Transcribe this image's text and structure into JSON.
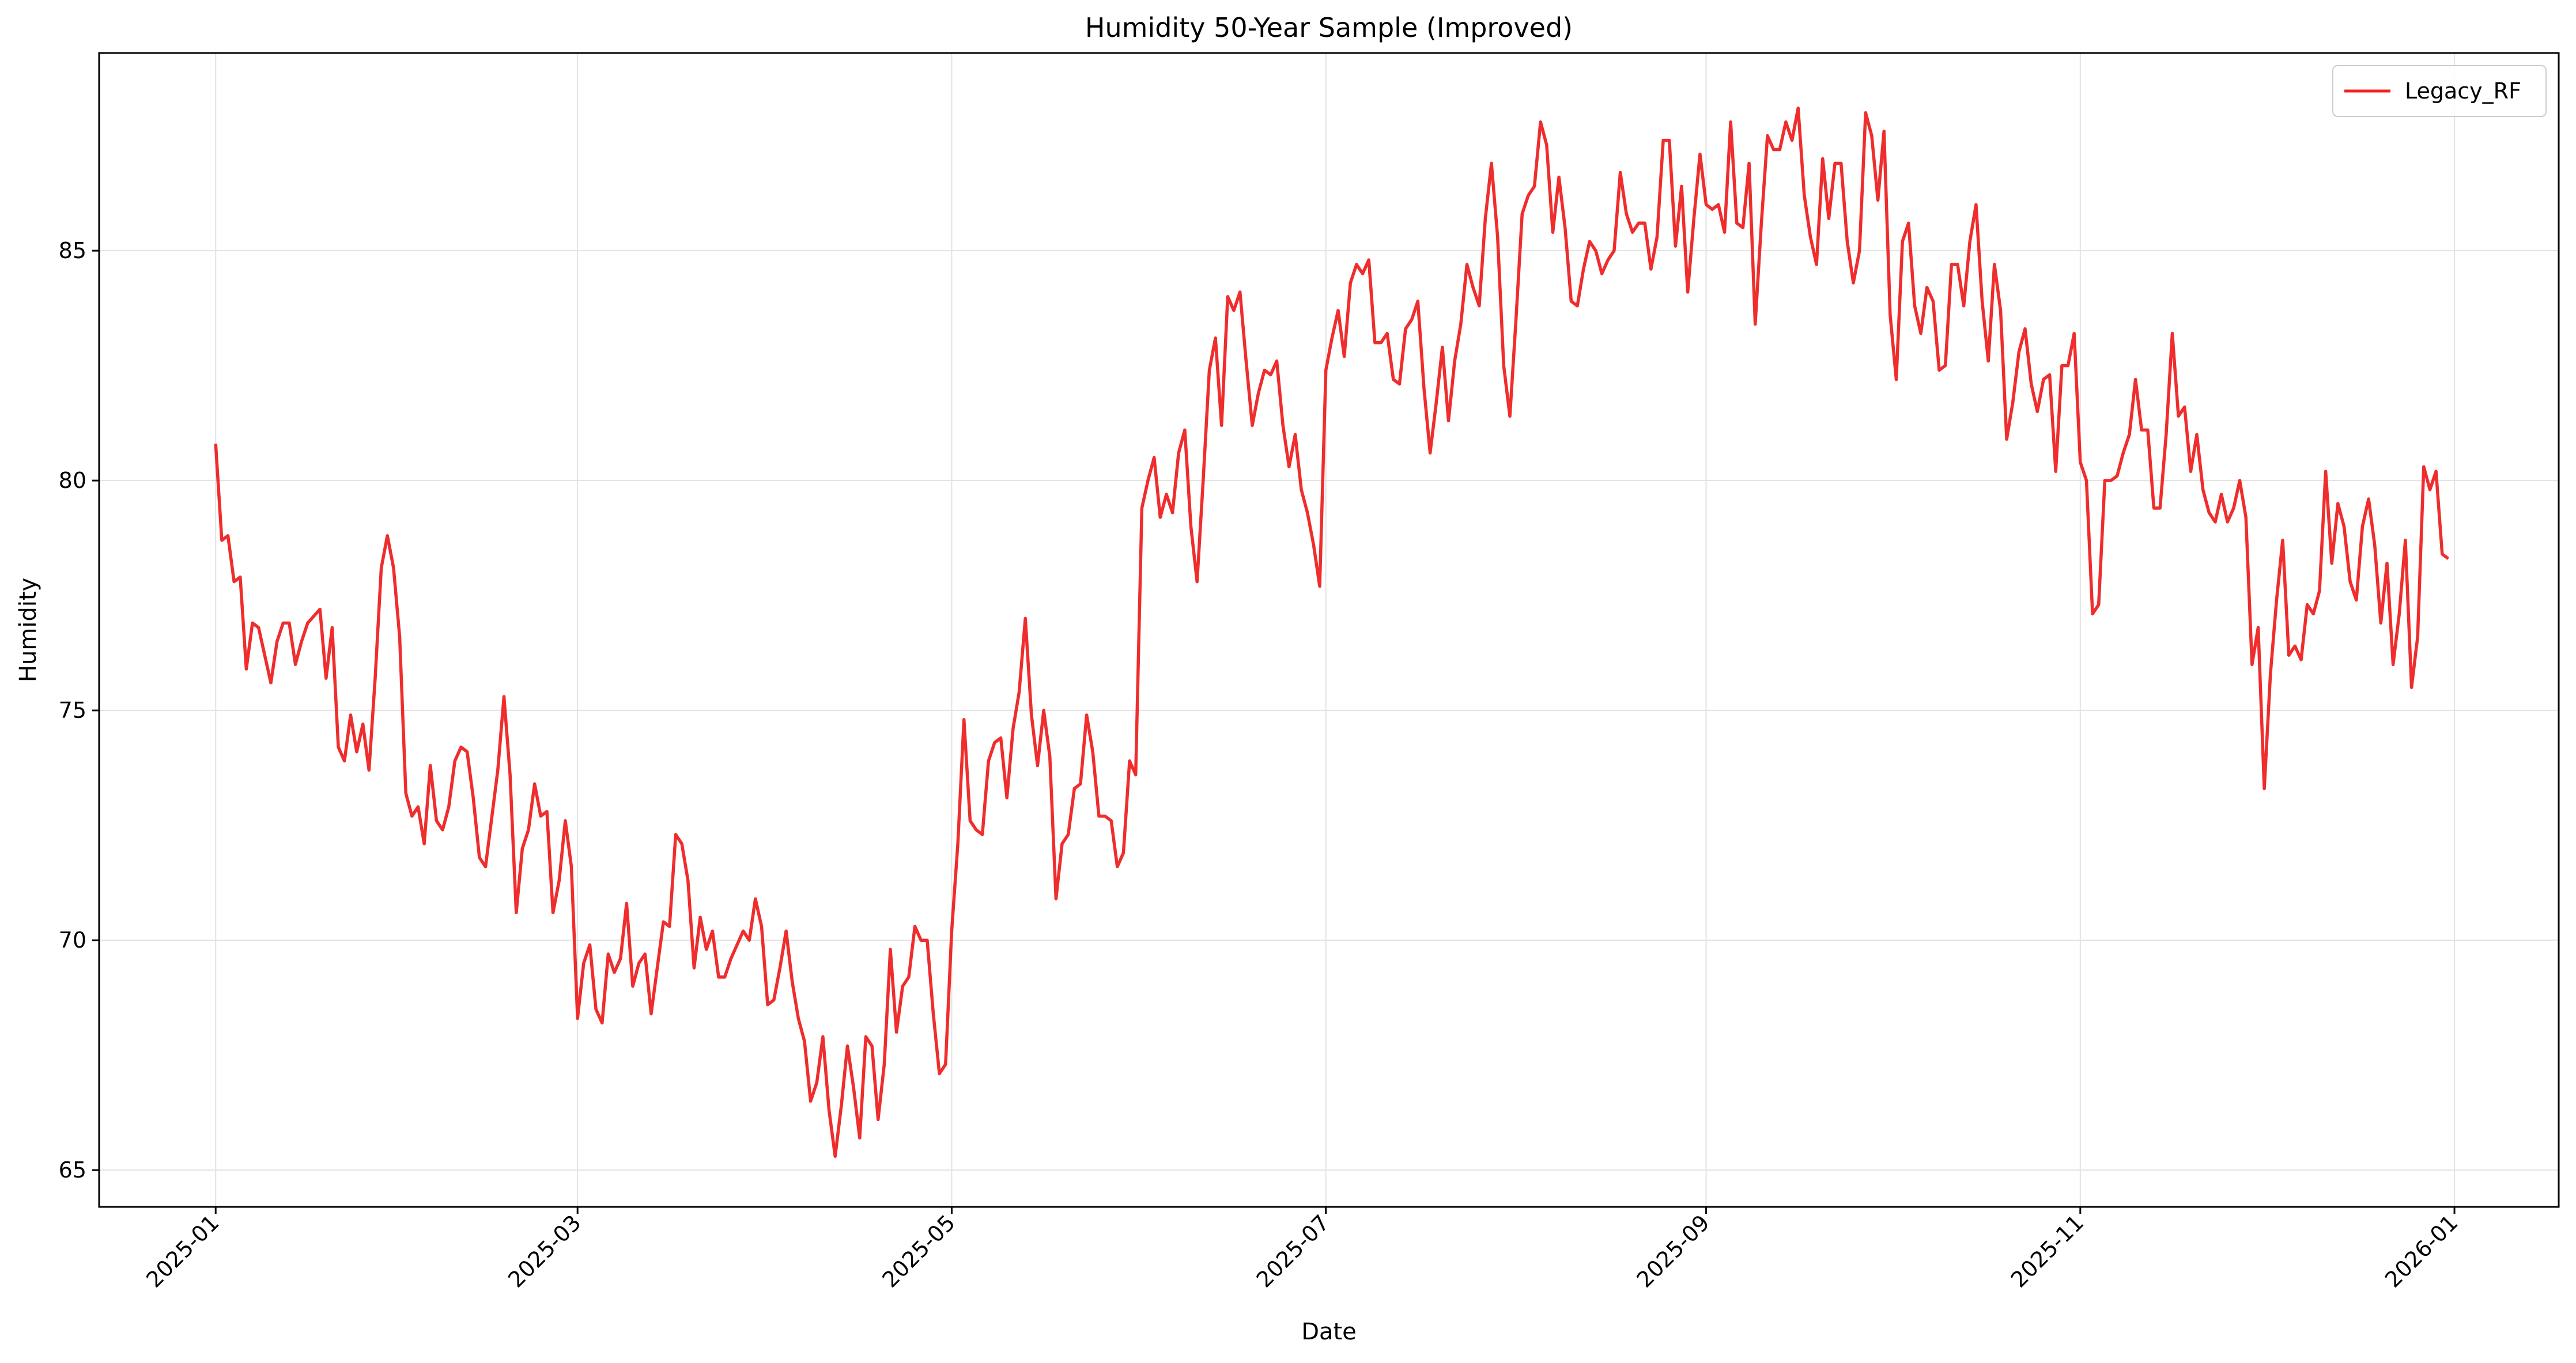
{
  "chart_data": {
    "type": "line",
    "title": "Humidity 50-Year Sample (Improved)",
    "xlabel": "Date",
    "ylabel": "Humidity",
    "x_range": [
      "2024-12-13",
      "2026-01-18"
    ],
    "ylim": [
      64.2,
      89.3
    ],
    "grid": true,
    "legend_placement": "top-right",
    "x_ticks": [
      "2025-01",
      "2025-03",
      "2025-05",
      "2025-07",
      "2025-09",
      "2025-11",
      "2026-01"
    ],
    "x_tick_dates": [
      "2025-01-01",
      "2025-03-01",
      "2025-05-01",
      "2025-07-01",
      "2025-09-01",
      "2025-11-01",
      "2026-01-01"
    ],
    "y_ticks": [
      65,
      70,
      75,
      80,
      85
    ],
    "series": [
      {
        "name": "Legacy_RF",
        "color": "#ee2222",
        "x": [
          "2025-01-01",
          "2025-01-02",
          "2025-01-03",
          "2025-01-04",
          "2025-01-05",
          "2025-01-06",
          "2025-01-07",
          "2025-01-08",
          "2025-01-10",
          "2025-01-11",
          "2025-01-12",
          "2025-01-13",
          "2025-01-14",
          "2025-01-15",
          "2025-01-16",
          "2025-01-18",
          "2025-01-19",
          "2025-01-20",
          "2025-01-21",
          "2025-01-22",
          "2025-01-23",
          "2025-01-24",
          "2025-01-25",
          "2025-01-26",
          "2025-01-27",
          "2025-01-28",
          "2025-01-29",
          "2025-01-30",
          "2025-01-31",
          "2025-02-01",
          "2025-02-02",
          "2025-02-03",
          "2025-02-04",
          "2025-02-05",
          "2025-02-06",
          "2025-02-07",
          "2025-02-08",
          "2025-02-09",
          "2025-02-10",
          "2025-02-11",
          "2025-02-12",
          "2025-02-13",
          "2025-02-14",
          "2025-02-16",
          "2025-02-17",
          "2025-02-18",
          "2025-02-19",
          "2025-02-20",
          "2025-02-21",
          "2025-02-22",
          "2025-02-23",
          "2025-02-24",
          "2025-02-25",
          "2025-02-26",
          "2025-02-27",
          "2025-02-28",
          "2025-03-01",
          "2025-03-02",
          "2025-03-03",
          "2025-03-04",
          "2025-03-05",
          "2025-03-06",
          "2025-03-07",
          "2025-03-08",
          "2025-03-09",
          "2025-03-10",
          "2025-03-11",
          "2025-03-12",
          "2025-03-13",
          "2025-03-14",
          "2025-03-15",
          "2025-03-16",
          "2025-03-17",
          "2025-03-18",
          "2025-03-19",
          "2025-03-20",
          "2025-03-21",
          "2025-03-22",
          "2025-03-23",
          "2025-03-24",
          "2025-03-25",
          "2025-03-26",
          "2025-03-28",
          "2025-03-29",
          "2025-03-30",
          "2025-03-31",
          "2025-04-01",
          "2025-04-02",
          "2025-04-03",
          "2025-04-04",
          "2025-04-05",
          "2025-04-06",
          "2025-04-07",
          "2025-04-08",
          "2025-04-09",
          "2025-04-10",
          "2025-04-11",
          "2025-04-12",
          "2025-04-13",
          "2025-04-14",
          "2025-04-15",
          "2025-04-16",
          "2025-04-17",
          "2025-04-18",
          "2025-04-19",
          "2025-04-20",
          "2025-04-21",
          "2025-04-22",
          "2025-04-23",
          "2025-04-24",
          "2025-04-25",
          "2025-04-26",
          "2025-04-27",
          "2025-04-28",
          "2025-04-29",
          "2025-04-30",
          "2025-05-01",
          "2025-05-02",
          "2025-05-03",
          "2025-05-04",
          "2025-05-05",
          "2025-05-06",
          "2025-05-07",
          "2025-05-08",
          "2025-05-09",
          "2025-05-10",
          "2025-05-11",
          "2025-05-12",
          "2025-05-13",
          "2025-05-14",
          "2025-05-15",
          "2025-05-16",
          "2025-05-17",
          "2025-05-18",
          "2025-05-19",
          "2025-05-20",
          "2025-05-21",
          "2025-05-22",
          "2025-05-23",
          "2025-05-24",
          "2025-05-25",
          "2025-05-26",
          "2025-05-27",
          "2025-05-28",
          "2025-05-29",
          "2025-05-30",
          "2025-05-31",
          "2025-06-01",
          "2025-06-02",
          "2025-06-03",
          "2025-06-04",
          "2025-06-05",
          "2025-06-06",
          "2025-06-07",
          "2025-06-08",
          "2025-06-09",
          "2025-06-10",
          "2025-06-11",
          "2025-06-12",
          "2025-06-13",
          "2025-06-14",
          "2025-06-15",
          "2025-06-16",
          "2025-06-17",
          "2025-06-18",
          "2025-06-19",
          "2025-06-20",
          "2025-06-21",
          "2025-06-22",
          "2025-06-23",
          "2025-06-24",
          "2025-06-25",
          "2025-06-26",
          "2025-06-27",
          "2025-06-28",
          "2025-06-29",
          "2025-06-30",
          "2025-07-01",
          "2025-07-02",
          "2025-07-03",
          "2025-07-04",
          "2025-07-05",
          "2025-07-06",
          "2025-07-07",
          "2025-07-08",
          "2025-07-09",
          "2025-07-10",
          "2025-07-11",
          "2025-07-12",
          "2025-07-13",
          "2025-07-14",
          "2025-07-15",
          "2025-07-16",
          "2025-07-17",
          "2025-07-18",
          "2025-07-19",
          "2025-07-20",
          "2025-07-21",
          "2025-07-22",
          "2025-07-23",
          "2025-07-24",
          "2025-07-25",
          "2025-07-26",
          "2025-07-27",
          "2025-07-28",
          "2025-07-29",
          "2025-07-30",
          "2025-07-31",
          "2025-08-01",
          "2025-08-02",
          "2025-08-03",
          "2025-08-04",
          "2025-08-05",
          "2025-08-06",
          "2025-08-07",
          "2025-08-08",
          "2025-08-09",
          "2025-08-10",
          "2025-08-11",
          "2025-08-12",
          "2025-08-13",
          "2025-08-14",
          "2025-08-15",
          "2025-08-16",
          "2025-08-17",
          "2025-08-18",
          "2025-08-19",
          "2025-08-20",
          "2025-08-21",
          "2025-08-22",
          "2025-08-23",
          "2025-08-24",
          "2025-08-25",
          "2025-08-26",
          "2025-08-27",
          "2025-08-28",
          "2025-08-29",
          "2025-08-30",
          "2025-08-31",
          "2025-09-01",
          "2025-09-02",
          "2025-09-03",
          "2025-09-04",
          "2025-09-05",
          "2025-09-06",
          "2025-09-07",
          "2025-09-08",
          "2025-09-09",
          "2025-09-10",
          "2025-09-11",
          "2025-09-12",
          "2025-09-13",
          "2025-09-14",
          "2025-09-15",
          "2025-09-16",
          "2025-09-17",
          "2025-09-18",
          "2025-09-19",
          "2025-09-20",
          "2025-09-21",
          "2025-09-22",
          "2025-09-23",
          "2025-09-24",
          "2025-09-25",
          "2025-09-26",
          "2025-09-27",
          "2025-09-28",
          "2025-09-29",
          "2025-09-30",
          "2025-10-01",
          "2025-10-02",
          "2025-10-03",
          "2025-10-04",
          "2025-10-05",
          "2025-10-06",
          "2025-10-07",
          "2025-10-08",
          "2025-10-09",
          "2025-10-10",
          "2025-10-11",
          "2025-10-12",
          "2025-10-13",
          "2025-10-14",
          "2025-10-15",
          "2025-10-16",
          "2025-10-17",
          "2025-10-18",
          "2025-10-19",
          "2025-10-20",
          "2025-10-21",
          "2025-10-22",
          "2025-10-23",
          "2025-10-24",
          "2025-10-25",
          "2025-10-26",
          "2025-10-27",
          "2025-10-28",
          "2025-10-29",
          "2025-10-30",
          "2025-10-31",
          "2025-11-01",
          "2025-11-02",
          "2025-11-03",
          "2025-11-04",
          "2025-11-05",
          "2025-11-06",
          "2025-11-07",
          "2025-11-08",
          "2025-11-09",
          "2025-11-10",
          "2025-11-11",
          "2025-11-12",
          "2025-11-13",
          "2025-11-14",
          "2025-11-15",
          "2025-11-16",
          "2025-11-17",
          "2025-11-18",
          "2025-11-19",
          "2025-11-20",
          "2025-11-21",
          "2025-11-22",
          "2025-11-23",
          "2025-11-24",
          "2025-11-25",
          "2025-11-26",
          "2025-11-27",
          "2025-11-28",
          "2025-11-29",
          "2025-11-30",
          "2025-12-01",
          "2025-12-02",
          "2025-12-03",
          "2025-12-04",
          "2025-12-05",
          "2025-12-06",
          "2025-12-07",
          "2025-12-08",
          "2025-12-09",
          "2025-12-10",
          "2025-12-11",
          "2025-12-12",
          "2025-12-13",
          "2025-12-14",
          "2025-12-15",
          "2025-12-16",
          "2025-12-17",
          "2025-12-18",
          "2025-12-19",
          "2025-12-20",
          "2025-12-21",
          "2025-12-22",
          "2025-12-23",
          "2025-12-24",
          "2025-12-25",
          "2025-12-26",
          "2025-12-27",
          "2025-12-28",
          "2025-12-29",
          "2025-12-30",
          "2025-12-31"
        ],
        "values": [
          80.8,
          78.7,
          78.8,
          77.8,
          77.9,
          75.9,
          76.9,
          76.8,
          75.6,
          76.5,
          76.9,
          76.9,
          76.0,
          76.5,
          76.9,
          77.2,
          75.7,
          76.8,
          74.2,
          73.9,
          74.9,
          74.1,
          74.7,
          73.7,
          75.7,
          78.1,
          78.8,
          78.1,
          76.6,
          73.2,
          72.7,
          72.9,
          72.1,
          73.8,
          72.6,
          72.4,
          72.9,
          73.9,
          74.2,
          74.1,
          73.1,
          71.8,
          71.6,
          73.7,
          75.3,
          73.6,
          70.6,
          72.0,
          72.4,
          73.4,
          72.7,
          72.8,
          70.6,
          71.3,
          72.6,
          71.6,
          68.3,
          69.5,
          69.9,
          68.5,
          68.2,
          69.7,
          69.3,
          69.6,
          70.8,
          69.0,
          69.5,
          69.7,
          68.4,
          69.4,
          70.4,
          70.3,
          72.3,
          72.1,
          71.3,
          69.4,
          70.5,
          69.8,
          70.2,
          69.2,
          69.2,
          69.6,
          70.2,
          70.0,
          70.9,
          70.3,
          68.6,
          68.7,
          69.4,
          70.2,
          69.1,
          68.3,
          67.8,
          66.5,
          66.9,
          67.9,
          66.3,
          65.3,
          66.4,
          67.7,
          66.8,
          65.7,
          67.9,
          67.7,
          66.1,
          67.3,
          69.8,
          68.0,
          69.0,
          69.2,
          70.3,
          70.0,
          70.0,
          68.4,
          67.1,
          67.3,
          70.2,
          72.1,
          74.8,
          72.6,
          72.4,
          72.3,
          73.9,
          74.3,
          74.4,
          73.1,
          74.6,
          75.4,
          77.0,
          74.9,
          73.8,
          75.0,
          74.0,
          70.9,
          72.1,
          72.3,
          73.3,
          73.4,
          74.9,
          74.1,
          72.7,
          72.7,
          72.6,
          71.6,
          71.9,
          73.9,
          73.6,
          79.4,
          80.0,
          80.5,
          79.2,
          79.7,
          79.3,
          80.6,
          81.1,
          79.0,
          77.8,
          80.0,
          82.4,
          83.1,
          81.2,
          84.0,
          83.7,
          84.1,
          82.6,
          81.2,
          81.9,
          82.4,
          82.3,
          82.6,
          81.2,
          80.3,
          81.0,
          79.8,
          79.3,
          78.6,
          77.7,
          82.4,
          83.1,
          83.7,
          82.7,
          84.3,
          84.7,
          84.5,
          84.8,
          83.0,
          83.0,
          83.2,
          82.2,
          82.1,
          83.3,
          83.5,
          83.9,
          82.0,
          80.6,
          81.7,
          82.9,
          81.3,
          82.6,
          83.4,
          84.7,
          84.2,
          83.8,
          85.7,
          86.9,
          85.3,
          82.5,
          81.4,
          83.5,
          85.8,
          86.2,
          86.4,
          87.8,
          87.3,
          85.4,
          86.6,
          85.5,
          83.9,
          83.8,
          84.6,
          85.2,
          85.0,
          84.5,
          84.8,
          85.0,
          86.7,
          85.8,
          85.4,
          85.6,
          85.6,
          84.6,
          85.3,
          87.4,
          87.4,
          85.1,
          86.4,
          84.1,
          85.7,
          87.1,
          86.0,
          85.9,
          86.0,
          85.4,
          87.8,
          85.6,
          85.5,
          86.9,
          83.4,
          85.6,
          87.5,
          87.2,
          87.2,
          87.8,
          87.4,
          88.1,
          86.2,
          85.3,
          84.7,
          87.0,
          85.7,
          86.9,
          86.9,
          85.2,
          84.3,
          85.0,
          88.0,
          87.5,
          86.1,
          87.6,
          83.6,
          82.2,
          85.2,
          85.6,
          83.8,
          83.2,
          84.2,
          83.9,
          82.4,
          82.5,
          84.7,
          84.7,
          83.8,
          85.2,
          86.0,
          83.9,
          82.6,
          84.7,
          83.7,
          80.9,
          81.7,
          82.8,
          83.3,
          82.1,
          81.5,
          82.2,
          82.3,
          80.2,
          82.5,
          82.5,
          83.2,
          80.4,
          80.0,
          77.1,
          77.3,
          80.0,
          80.0,
          80.1,
          80.6,
          81.0,
          82.2,
          81.1,
          81.1,
          79.4,
          79.4,
          81.0,
          83.2,
          81.4,
          81.6,
          80.2,
          81.0,
          79.8,
          79.3,
          79.1,
          79.7,
          79.1,
          79.4,
          80.0,
          79.2,
          76.0,
          76.8,
          73.3,
          75.8,
          77.4,
          78.7,
          76.2,
          76.4,
          76.1,
          77.3,
          77.1,
          77.6,
          80.2,
          78.2,
          79.5,
          79.0,
          77.8,
          77.4,
          79.0,
          79.6,
          78.6,
          76.9,
          78.2,
          76.0,
          77.1,
          78.7,
          75.5,
          76.6,
          80.3,
          79.8,
          80.2,
          78.4,
          78.3
        ]
      }
    ]
  }
}
